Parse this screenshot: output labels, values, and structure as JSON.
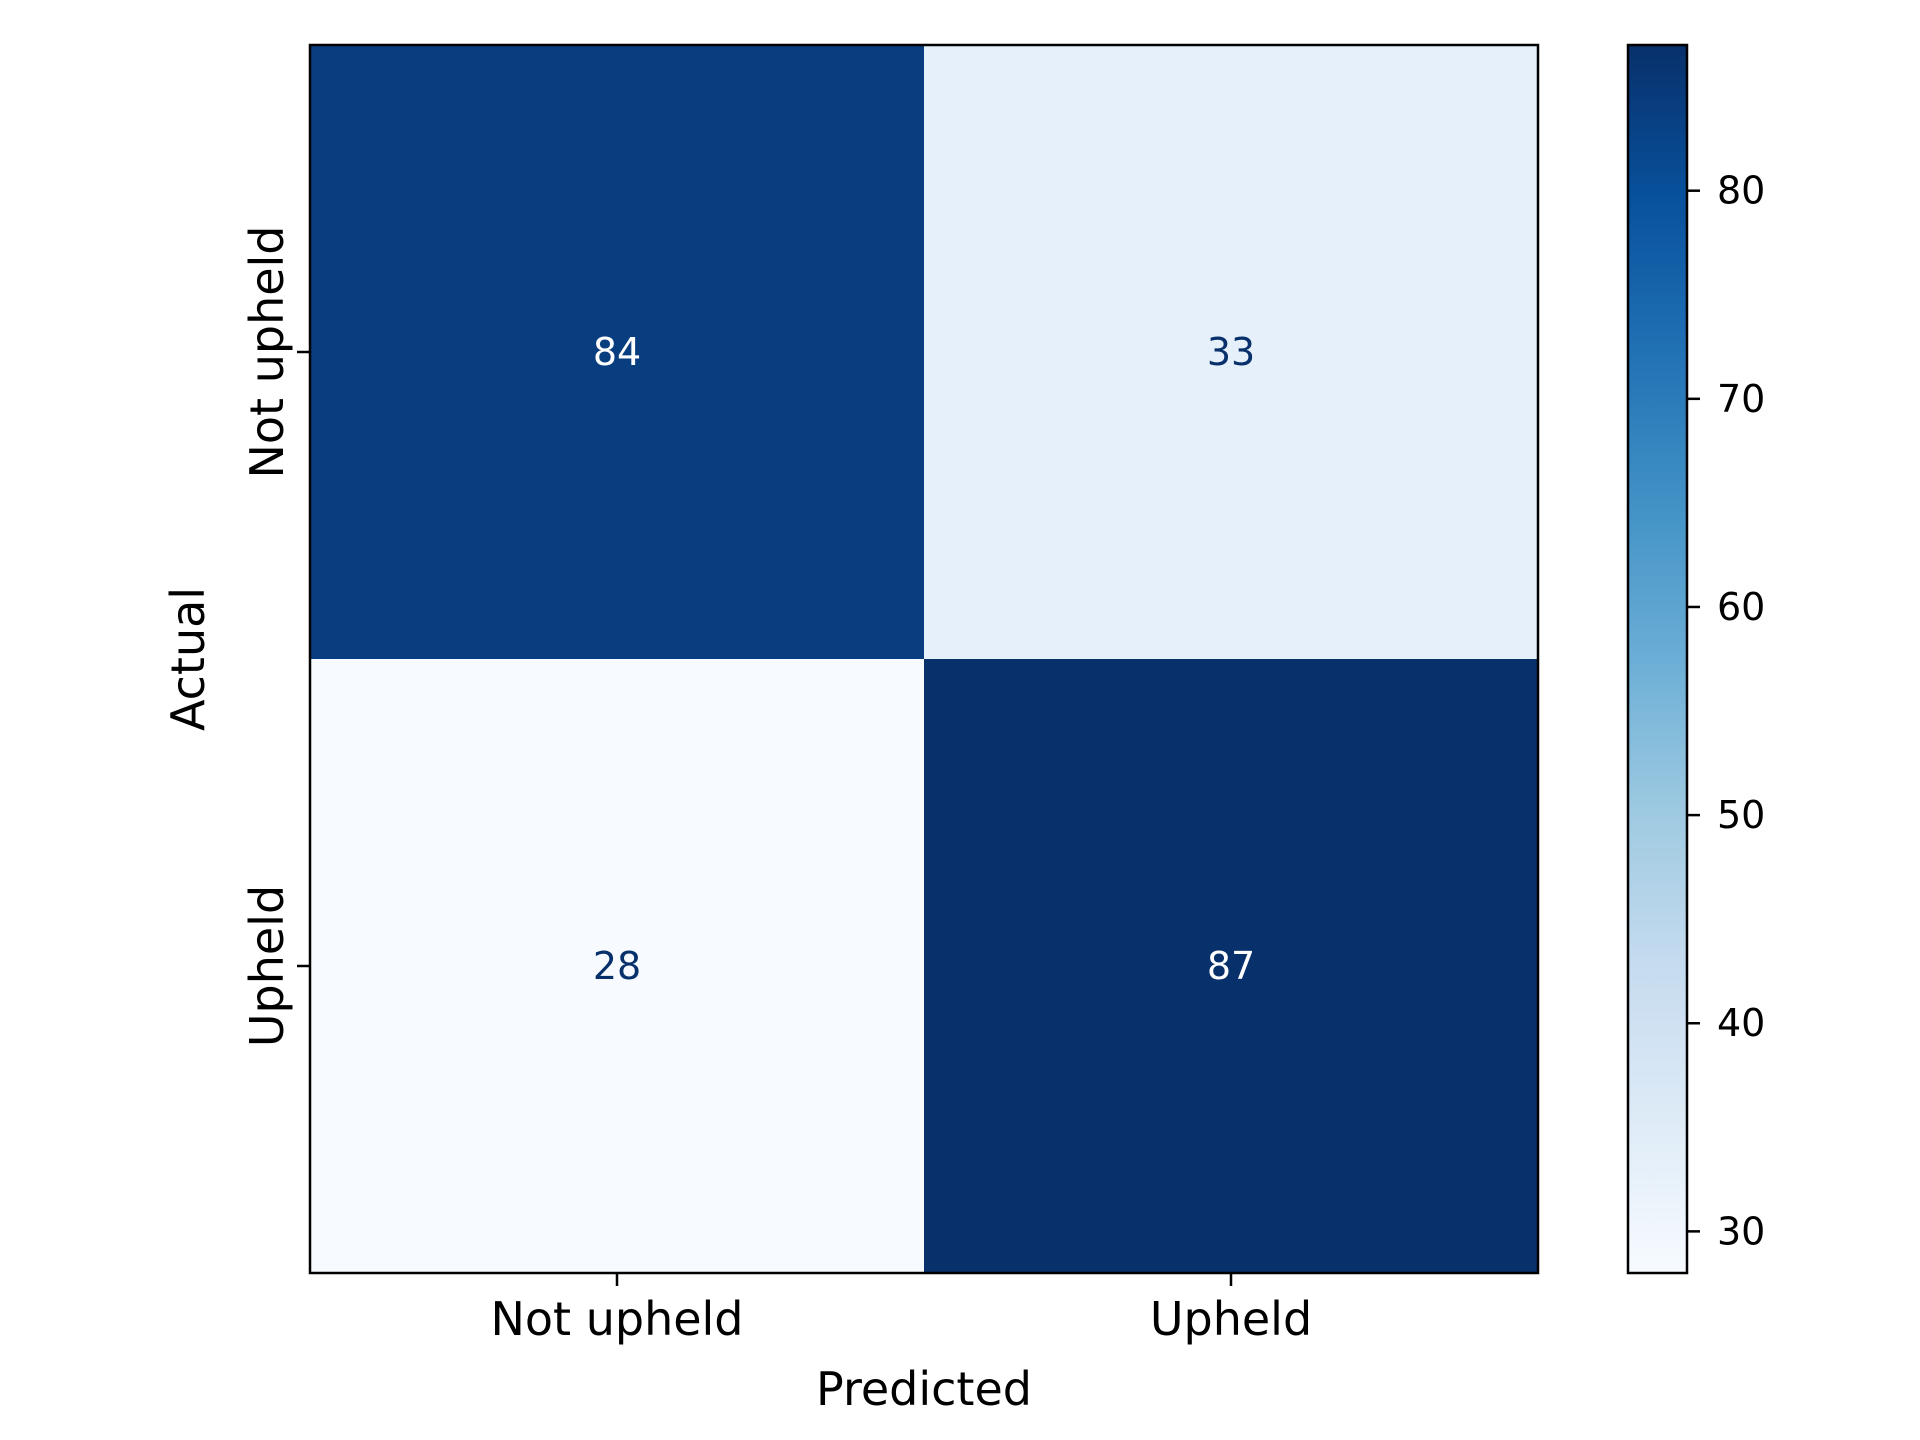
{
  "chart_data": {
    "type": "heatmap",
    "title": "",
    "xlabel": "Predicted",
    "ylabel": "Actual",
    "x_categories": [
      "Not upheld",
      "Upheld"
    ],
    "y_categories": [
      "Not upheld",
      "Upheld"
    ],
    "values": [
      [
        84,
        33
      ],
      [
        28,
        87
      ]
    ],
    "colormap": "Blues",
    "colorbar": {
      "min": 28,
      "max": 87,
      "ticks": [
        30,
        40,
        50,
        60,
        70,
        80
      ]
    },
    "grid": false,
    "legend": "colorbar-right"
  }
}
